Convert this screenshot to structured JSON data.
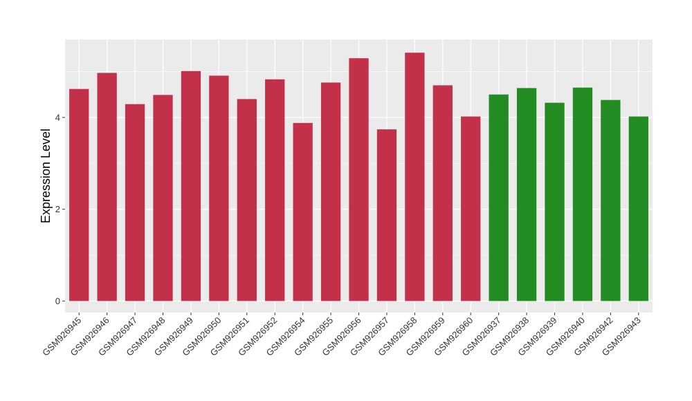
{
  "chart_data": {
    "type": "bar",
    "title": "",
    "xlabel": "",
    "ylabel": "Expression Level",
    "ylim": [
      -0.25,
      5.7
    ],
    "yticks": [
      0,
      2,
      4
    ],
    "grid": true,
    "legend": "none",
    "categories": [
      "GSM926945",
      "GSM926946",
      "GSM926947",
      "GSM926948",
      "GSM926949",
      "GSM926950",
      "GSM926951",
      "GSM926952",
      "GSM926954",
      "GSM926955",
      "GSM926956",
      "GSM926957",
      "GSM926958",
      "GSM926959",
      "GSM926960",
      "GSM926937",
      "GSM926938",
      "GSM926939",
      "GSM926940",
      "GSM926942",
      "GSM926943"
    ],
    "values": [
      4.62,
      4.97,
      4.29,
      4.49,
      5.01,
      4.91,
      4.4,
      4.83,
      3.88,
      4.76,
      5.29,
      3.74,
      5.41,
      4.7,
      4.02,
      4.5,
      4.64,
      4.32,
      4.65,
      4.38,
      4.02
    ],
    "bar_colors": [
      "#C3304A",
      "#C3304A",
      "#C3304A",
      "#C3304A",
      "#C3304A",
      "#C3304A",
      "#C3304A",
      "#C3304A",
      "#C3304A",
      "#C3304A",
      "#C3304A",
      "#C3304A",
      "#C3304A",
      "#C3304A",
      "#C3304A",
      "#228B22",
      "#228B22",
      "#228B22",
      "#228B22",
      "#228B22",
      "#228B22"
    ],
    "panel_background": "#EBEBEB",
    "grid_color": "#FFFFFF"
  }
}
